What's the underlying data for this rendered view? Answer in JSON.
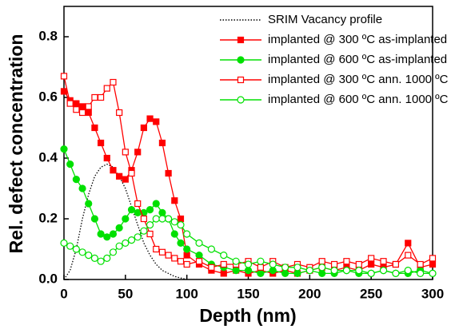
{
  "chart_data": {
    "type": "line",
    "x_label": "Depth (nm)",
    "y_label": "Rel. defect concentration",
    "x": [
      0,
      5,
      10,
      15,
      20,
      25,
      30,
      35,
      40,
      45,
      50,
      55,
      60,
      65,
      70,
      75,
      80,
      85,
      90,
      95,
      100,
      110,
      120,
      130,
      140,
      150,
      160,
      170,
      180,
      190,
      200,
      210,
      220,
      230,
      240,
      250,
      260,
      270,
      280,
      290,
      300
    ],
    "series": [
      {
        "name": "SRIM Vacancy profile",
        "color": "#000000",
        "dash": "dot",
        "marker": "none",
        "values": [
          0,
          0.03,
          0.1,
          0.2,
          0.28,
          0.34,
          0.37,
          0.38,
          0.37,
          0.34,
          0.3,
          0.24,
          0.18,
          0.12,
          0.08,
          0.05,
          0.03,
          0.02,
          0.01,
          0.005,
          0,
          null,
          null,
          null,
          null,
          null,
          null,
          null,
          null,
          null,
          null,
          null,
          null,
          null,
          null,
          null,
          null,
          null,
          null,
          null,
          null
        ]
      },
      {
        "name": "implanted @ 300 ºC as-implanted",
        "color": "#ff0000",
        "dash": "solid",
        "marker": "square",
        "filled": true,
        "values": [
          0.62,
          0.59,
          0.58,
          0.57,
          0.55,
          0.5,
          0.45,
          0.4,
          0.36,
          0.34,
          0.33,
          0.36,
          0.42,
          0.5,
          0.53,
          0.52,
          0.45,
          0.35,
          0.26,
          0.2,
          0.08,
          0.05,
          0.03,
          0.02,
          0.03,
          0.02,
          0.03,
          0.02,
          0.03,
          0.02,
          0.03,
          0.04,
          0.03,
          0.04,
          0.03,
          0.05,
          0.04,
          0.05,
          0.12,
          0.04,
          0.05
        ]
      },
      {
        "name": "implanted @ 600 ºC as-implanted",
        "color": "#00e000",
        "dash": "solid",
        "marker": "circle",
        "filled": true,
        "values": [
          0.43,
          0.38,
          0.33,
          0.3,
          0.25,
          0.2,
          0.15,
          0.14,
          0.15,
          0.17,
          0.2,
          0.23,
          0.22,
          0.22,
          0.23,
          0.25,
          0.22,
          0.2,
          0.15,
          0.12,
          0.1,
          0.08,
          0.05,
          0.04,
          0.03,
          0.03,
          0.02,
          0.03,
          0.02,
          0.02,
          0.03,
          0.02,
          0.02,
          0.03,
          0.02,
          0.02,
          0.03,
          0.02,
          0.02,
          0.03,
          0.02
        ]
      },
      {
        "name": "implanted @ 300 ºC ann. 1000 ºC",
        "color": "#ff0000",
        "dash": "solid",
        "marker": "square",
        "filled": false,
        "values": [
          0.67,
          0.58,
          0.56,
          0.55,
          0.57,
          0.6,
          0.6,
          0.63,
          0.65,
          0.55,
          0.42,
          0.35,
          0.25,
          0.2,
          0.15,
          0.1,
          0.09,
          0.08,
          0.07,
          0.06,
          0.05,
          0.06,
          0.04,
          0.05,
          0.05,
          0.06,
          0.04,
          0.06,
          0.04,
          0.05,
          0.04,
          0.06,
          0.05,
          0.06,
          0.05,
          0.07,
          0.06,
          0.05,
          0.08,
          0.05,
          0.07
        ]
      },
      {
        "name": "implanted @ 600 ºC ann. 1000 ºC",
        "color": "#00e000",
        "dash": "solid",
        "marker": "circle",
        "filled": false,
        "values": [
          0.12,
          0.11,
          0.1,
          0.09,
          0.08,
          0.07,
          0.06,
          0.07,
          0.09,
          0.11,
          0.12,
          0.13,
          0.14,
          0.16,
          0.18,
          0.2,
          0.2,
          0.2,
          0.19,
          0.18,
          0.15,
          0.12,
          0.1,
          0.08,
          0.06,
          0.05,
          0.06,
          0.05,
          0.04,
          0.04,
          0.03,
          0.04,
          0.03,
          0.03,
          0.03,
          0.02,
          0.03,
          0.02,
          0.03,
          0.02,
          0.02
        ]
      }
    ],
    "xlim": [
      0,
      300
    ],
    "xticks": [
      0,
      50,
      100,
      150,
      200,
      250,
      300
    ],
    "ylim": [
      0,
      0.9
    ],
    "yticks": [
      {
        "value": 0,
        "label": "0.0"
      },
      0.2,
      0.4,
      0.6,
      0.8
    ],
    "grid": false,
    "legend": "upper right"
  }
}
